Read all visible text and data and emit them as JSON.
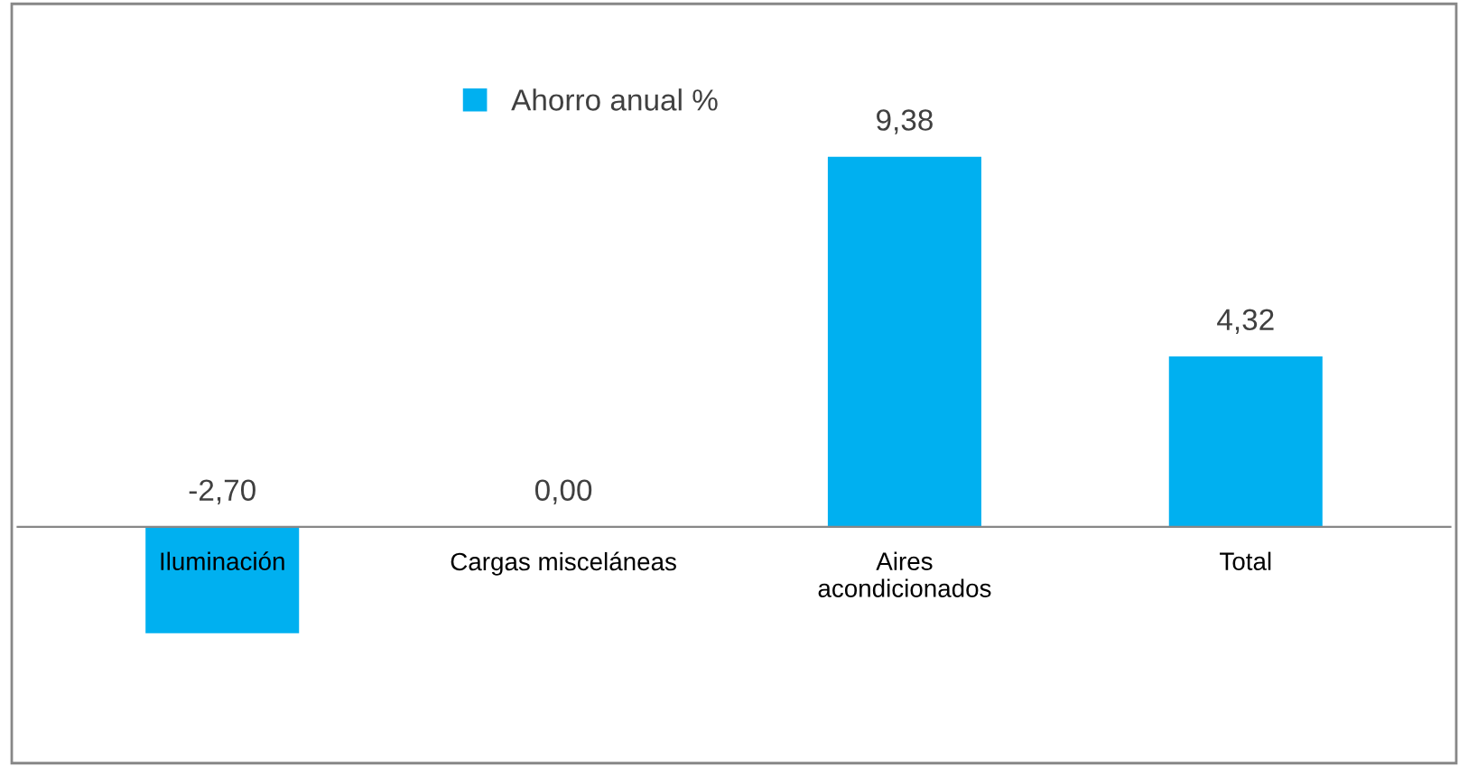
{
  "chart_data": {
    "type": "bar",
    "categories": [
      "Iluminación",
      "Cargas misceláneas",
      "Aires\nacondicionados",
      "Total"
    ],
    "series": [
      {
        "name": "Ahorro anual %",
        "color": "#00b0f0",
        "values": [
          -2.7,
          0.0,
          9.38,
          4.32
        ],
        "value_labels": [
          "-2,70",
          "0,00",
          "9,38",
          "4,32"
        ]
      }
    ],
    "legend": "top",
    "grid": false
  }
}
